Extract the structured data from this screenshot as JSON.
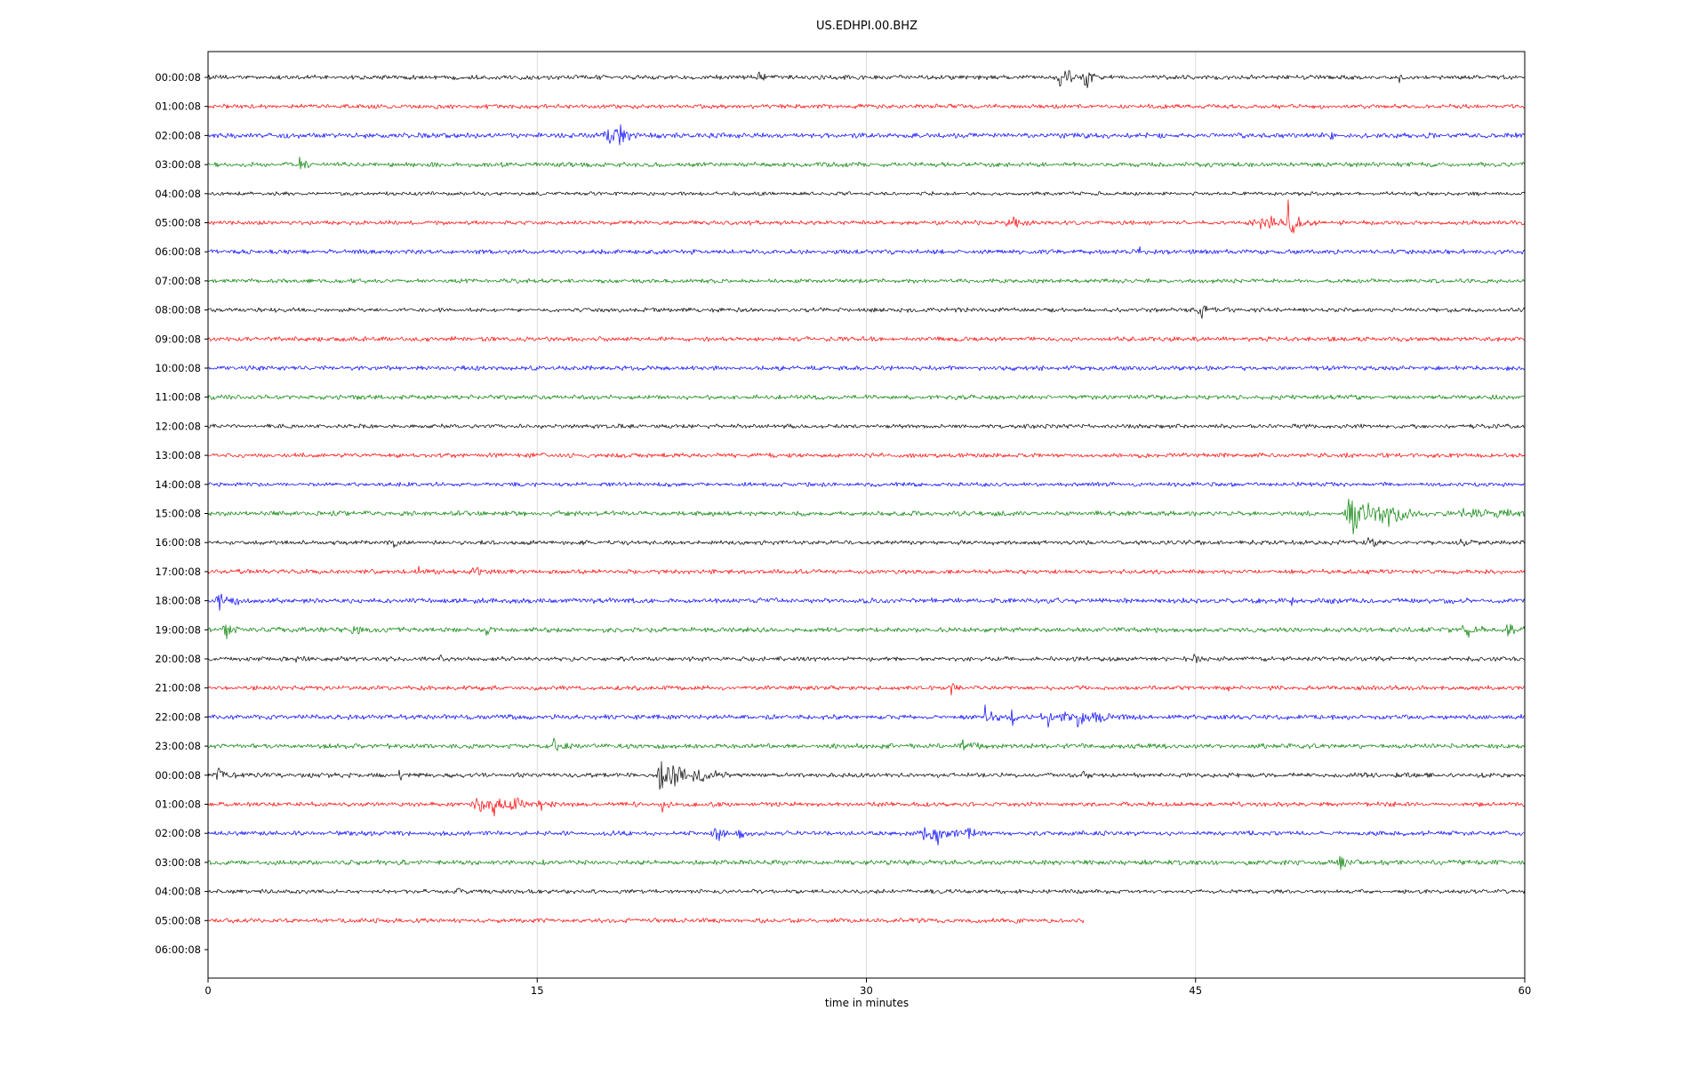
{
  "title": "US.EDHPI.00.BHZ",
  "chart_data": {
    "type": "line",
    "subtype": "seismogram-dayplot",
    "title": "US.EDHPI.00.BHZ",
    "xlabel": "time in minutes",
    "x_range": [
      0,
      60
    ],
    "x_ticks": [
      0,
      15,
      30,
      45,
      60
    ],
    "grid": "vertical-only",
    "legend": "none",
    "trace_colors": [
      "#000000",
      "#ff0000",
      "#0000ff",
      "#008000"
    ],
    "rows": [
      {
        "label": "00:00:08",
        "color": "#000000",
        "base": 3.0,
        "end": 1,
        "events": [
          {
            "m": 25.1,
            "a": 8,
            "w": 0.15
          },
          {
            "m": 38.9,
            "a": 18,
            "w": 0.5
          },
          {
            "m": 40.0,
            "a": 27,
            "w": 0.12
          },
          {
            "m": 54.3,
            "a": 9,
            "w": 0.08
          }
        ]
      },
      {
        "label": "01:00:08",
        "color": "#ff0000",
        "base": 3.0,
        "end": 1,
        "events": []
      },
      {
        "label": "02:00:08",
        "color": "#0000ff",
        "base": 3.4,
        "end": 1,
        "events": [
          {
            "m": 18.2,
            "a": 14,
            "w": 0.4
          },
          {
            "m": 18.7,
            "a": 10,
            "w": 0.4
          },
          {
            "m": 51.2,
            "a": 6,
            "w": 0.08
          }
        ]
      },
      {
        "label": "03:00:08",
        "color": "#008000",
        "base": 3.0,
        "end": 1,
        "events": [
          {
            "m": 4.2,
            "a": 9,
            "w": 0.25
          }
        ]
      },
      {
        "label": "04:00:08",
        "color": "#000000",
        "base": 2.5,
        "end": 1,
        "events": []
      },
      {
        "label": "05:00:08",
        "color": "#ff0000",
        "base": 2.8,
        "end": 1,
        "events": [
          {
            "m": 36.5,
            "a": 10,
            "w": 0.35
          },
          {
            "m": 47.9,
            "a": 10,
            "w": 1.0
          },
          {
            "m": 49.2,
            "a": 28,
            "w": 0.25
          }
        ]
      },
      {
        "label": "06:00:08",
        "color": "#0000ff",
        "base": 3.1,
        "end": 1,
        "events": [
          {
            "m": 42.4,
            "a": 7,
            "w": 0.08
          }
        ]
      },
      {
        "label": "07:00:08",
        "color": "#008000",
        "base": 2.8,
        "end": 1,
        "events": []
      },
      {
        "label": "08:00:08",
        "color": "#000000",
        "base": 2.8,
        "end": 1,
        "events": [
          {
            "m": 45.2,
            "a": 12,
            "w": 0.25
          }
        ]
      },
      {
        "label": "09:00:08",
        "color": "#ff0000",
        "base": 3.0,
        "end": 1,
        "events": []
      },
      {
        "label": "10:00:08",
        "color": "#0000ff",
        "base": 3.0,
        "end": 1,
        "events": []
      },
      {
        "label": "11:00:08",
        "color": "#008000",
        "base": 3.0,
        "end": 1,
        "events": []
      },
      {
        "label": "12:00:08",
        "color": "#000000",
        "base": 2.8,
        "end": 1,
        "events": []
      },
      {
        "label": "13:00:08",
        "color": "#ff0000",
        "base": 3.0,
        "end": 1,
        "events": []
      },
      {
        "label": "14:00:08",
        "color": "#0000ff",
        "base": 2.8,
        "end": 1,
        "events": []
      },
      {
        "label": "15:00:08",
        "color": "#008000",
        "base": 3.2,
        "end": 1,
        "events": [
          {
            "m": 52.1,
            "a": 30,
            "w": 0.7
          },
          {
            "m": 53.6,
            "a": 12,
            "w": 0.8
          },
          {
            "m": 57.2,
            "a": 6,
            "w": 0.8
          },
          {
            "m": 58.8,
            "a": 10,
            "w": 0.5
          }
        ]
      },
      {
        "label": "16:00:08",
        "color": "#000000",
        "base": 2.9,
        "end": 1,
        "events": [
          {
            "m": 8.5,
            "a": 5,
            "w": 0.15
          },
          {
            "m": 52.9,
            "a": 8,
            "w": 0.25
          },
          {
            "m": 57.1,
            "a": 6,
            "w": 0.15
          }
        ]
      },
      {
        "label": "17:00:08",
        "color": "#ff0000",
        "base": 3.0,
        "end": 1,
        "events": [
          {
            "m": 9.6,
            "a": 7,
            "w": 0.15
          },
          {
            "m": 12.0,
            "a": 10,
            "w": 0.25
          }
        ]
      },
      {
        "label": "18:00:08",
        "color": "#0000ff",
        "base": 3.4,
        "end": 1,
        "events": [
          {
            "m": 0.5,
            "a": 10,
            "w": 0.5
          },
          {
            "m": 49.3,
            "a": 14,
            "w": 0.15
          }
        ]
      },
      {
        "label": "19:00:08",
        "color": "#008000",
        "base": 3.2,
        "end": 1,
        "events": [
          {
            "m": 0.8,
            "a": 11,
            "w": 0.25
          },
          {
            "m": 6.6,
            "a": 7,
            "w": 0.25
          },
          {
            "m": 12.6,
            "a": 11,
            "w": 0.2
          },
          {
            "m": 57.3,
            "a": 9,
            "w": 0.5
          },
          {
            "m": 59.2,
            "a": 8,
            "w": 0.4
          }
        ]
      },
      {
        "label": "20:00:08",
        "color": "#000000",
        "base": 2.9,
        "end": 1,
        "events": [
          {
            "m": 4.0,
            "a": 5,
            "w": 0.25
          },
          {
            "m": 10.5,
            "a": 16,
            "w": 0.1
          },
          {
            "m": 44.9,
            "a": 7,
            "w": 0.15
          }
        ]
      },
      {
        "label": "21:00:08",
        "color": "#ff0000",
        "base": 3.0,
        "end": 1,
        "events": [
          {
            "m": 33.9,
            "a": 11,
            "w": 0.12
          },
          {
            "m": 46.4,
            "a": 6,
            "w": 0.15
          }
        ]
      },
      {
        "label": "22:00:08",
        "color": "#0000ff",
        "base": 3.2,
        "end": 1,
        "events": [
          {
            "m": 35.4,
            "a": 17,
            "w": 0.25
          },
          {
            "m": 36.6,
            "a": 12,
            "w": 0.25
          },
          {
            "m": 38.3,
            "a": 10,
            "w": 1.1
          },
          {
            "m": 39.6,
            "a": 14,
            "w": 0.35
          },
          {
            "m": 40.4,
            "a": 17,
            "w": 0.25
          }
        ]
      },
      {
        "label": "23:00:08",
        "color": "#008000",
        "base": 3.2,
        "end": 1,
        "events": [
          {
            "m": 15.8,
            "a": 10,
            "w": 0.25
          },
          {
            "m": 34.4,
            "a": 6,
            "w": 0.4
          }
        ]
      },
      {
        "label": "00:00:08",
        "color": "#000000",
        "base": 3.1,
        "end": 1,
        "events": [
          {
            "m": 0.5,
            "a": 7,
            "w": 0.35
          },
          {
            "m": 8.7,
            "a": 7,
            "w": 0.12
          },
          {
            "m": 20.6,
            "a": 28,
            "w": 0.25
          },
          {
            "m": 21.2,
            "a": 18,
            "w": 0.4
          },
          {
            "m": 22.3,
            "a": 7,
            "w": 0.7
          },
          {
            "m": 39.9,
            "a": 7,
            "w": 0.08
          }
        ]
      },
      {
        "label": "01:00:08",
        "color": "#ff0000",
        "base": 3.0,
        "end": 1,
        "events": [
          {
            "m": 12.2,
            "a": 14,
            "w": 0.35
          },
          {
            "m": 13.0,
            "a": 13,
            "w": 0.4
          },
          {
            "m": 13.9,
            "a": 12,
            "w": 0.35
          },
          {
            "m": 15.1,
            "a": 9,
            "w": 0.25
          },
          {
            "m": 20.7,
            "a": 14,
            "w": 0.12
          }
        ]
      },
      {
        "label": "02:00:08",
        "color": "#0000ff",
        "base": 3.1,
        "end": 1,
        "events": [
          {
            "m": 23.1,
            "a": 12,
            "w": 0.35
          },
          {
            "m": 24.2,
            "a": 8,
            "w": 0.25
          },
          {
            "m": 32.7,
            "a": 10,
            "w": 0.5
          },
          {
            "m": 33.2,
            "a": 16,
            "w": 0.25
          },
          {
            "m": 34.6,
            "a": 9,
            "w": 0.25
          }
        ]
      },
      {
        "label": "03:00:08",
        "color": "#008000",
        "base": 3.2,
        "end": 1,
        "events": [
          {
            "m": 51.6,
            "a": 10,
            "w": 0.15
          }
        ]
      },
      {
        "label": "04:00:08",
        "color": "#000000",
        "base": 2.7,
        "end": 1,
        "events": [
          {
            "m": 11.3,
            "a": 9,
            "w": 0.12
          }
        ]
      },
      {
        "label": "05:00:08",
        "color": "#ff0000",
        "base": 3.0,
        "end": 0.665,
        "events": []
      },
      {
        "label": "06:00:08",
        "color": "#0000ff",
        "base": 0,
        "end": 0,
        "events": []
      }
    ]
  }
}
